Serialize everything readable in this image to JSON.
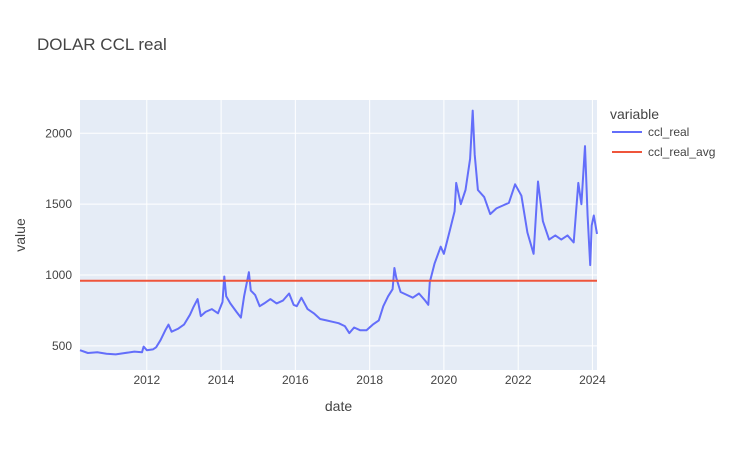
{
  "chart_data": {
    "type": "line",
    "title": "DOLAR CCL real",
    "xlabel": "date",
    "ylabel": "value",
    "legend_title": "variable",
    "legend_position": "right",
    "grid": true,
    "xlim": [
      "2010-03-15",
      "2024-02-15"
    ],
    "ylim": [
      330,
      2235
    ],
    "xticks": [
      2012,
      2014,
      2016,
      2018,
      2020,
      2022,
      2024
    ],
    "yticks": [
      500,
      1000,
      1500,
      2000
    ],
    "colors": {
      "ccl_real": "#636efa",
      "ccl_real_avg": "#ef553b",
      "plot_bg": "#e5ecf6"
    },
    "series": [
      {
        "name": "ccl_real",
        "points": [
          [
            "2010-03-15",
            470
          ],
          [
            "2010-06-01",
            450
          ],
          [
            "2010-09-01",
            455
          ],
          [
            "2010-12-01",
            445
          ],
          [
            "2011-03-01",
            440
          ],
          [
            "2011-06-01",
            450
          ],
          [
            "2011-09-01",
            460
          ],
          [
            "2011-11-15",
            455
          ],
          [
            "2011-12-01",
            495
          ],
          [
            "2012-01-01",
            470
          ],
          [
            "2012-03-01",
            475
          ],
          [
            "2012-04-01",
            490
          ],
          [
            "2012-05-15",
            540
          ],
          [
            "2012-07-01",
            610
          ],
          [
            "2012-08-01",
            650
          ],
          [
            "2012-09-01",
            600
          ],
          [
            "2012-11-01",
            620
          ],
          [
            "2013-01-01",
            650
          ],
          [
            "2013-03-01",
            720
          ],
          [
            "2013-04-01",
            770
          ],
          [
            "2013-05-15",
            830
          ],
          [
            "2013-06-15",
            710
          ],
          [
            "2013-08-01",
            740
          ],
          [
            "2013-10-01",
            760
          ],
          [
            "2013-12-01",
            730
          ],
          [
            "2014-01-15",
            810
          ],
          [
            "2014-02-01",
            990
          ],
          [
            "2014-02-20",
            850
          ],
          [
            "2014-04-01",
            800
          ],
          [
            "2014-06-01",
            740
          ],
          [
            "2014-07-15",
            700
          ],
          [
            "2014-08-15",
            850
          ],
          [
            "2014-09-15",
            960
          ],
          [
            "2014-10-01",
            1020
          ],
          [
            "2014-10-20",
            890
          ],
          [
            "2014-12-01",
            860
          ],
          [
            "2015-01-15",
            780
          ],
          [
            "2015-03-01",
            800
          ],
          [
            "2015-05-01",
            830
          ],
          [
            "2015-07-01",
            800
          ],
          [
            "2015-09-01",
            820
          ],
          [
            "2015-11-01",
            870
          ],
          [
            "2015-12-15",
            790
          ],
          [
            "2016-01-15",
            780
          ],
          [
            "2016-03-01",
            840
          ],
          [
            "2016-05-01",
            760
          ],
          [
            "2016-07-01",
            730
          ],
          [
            "2016-09-01",
            690
          ],
          [
            "2016-11-01",
            680
          ],
          [
            "2017-01-01",
            670
          ],
          [
            "2017-03-01",
            660
          ],
          [
            "2017-05-01",
            640
          ],
          [
            "2017-06-15",
            590
          ],
          [
            "2017-08-01",
            630
          ],
          [
            "2017-10-01",
            610
          ],
          [
            "2017-12-01",
            610
          ],
          [
            "2018-02-01",
            650
          ],
          [
            "2018-04-01",
            680
          ],
          [
            "2018-05-15",
            780
          ],
          [
            "2018-07-01",
            850
          ],
          [
            "2018-08-15",
            900
          ],
          [
            "2018-09-01",
            1050
          ],
          [
            "2018-09-20",
            980
          ],
          [
            "2018-11-01",
            880
          ],
          [
            "2019-01-01",
            860
          ],
          [
            "2019-03-01",
            840
          ],
          [
            "2019-05-01",
            870
          ],
          [
            "2019-07-01",
            820
          ],
          [
            "2019-08-01",
            790
          ],
          [
            "2019-08-15",
            950
          ],
          [
            "2019-10-01",
            1080
          ],
          [
            "2019-12-01",
            1200
          ],
          [
            "2020-01-01",
            1150
          ],
          [
            "2020-03-01",
            1320
          ],
          [
            "2020-04-15",
            1450
          ],
          [
            "2020-05-01",
            1650
          ],
          [
            "2020-06-15",
            1500
          ],
          [
            "2020-08-01",
            1600
          ],
          [
            "2020-09-15",
            1820
          ],
          [
            "2020-10-10",
            2160
          ],
          [
            "2020-10-30",
            1850
          ],
          [
            "2020-12-01",
            1600
          ],
          [
            "2021-02-01",
            1550
          ],
          [
            "2021-04-01",
            1430
          ],
          [
            "2021-06-01",
            1470
          ],
          [
            "2021-08-01",
            1490
          ],
          [
            "2021-10-01",
            1510
          ],
          [
            "2021-12-01",
            1640
          ],
          [
            "2022-02-01",
            1560
          ],
          [
            "2022-04-01",
            1300
          ],
          [
            "2022-06-01",
            1150
          ],
          [
            "2022-07-15",
            1660
          ],
          [
            "2022-09-01",
            1380
          ],
          [
            "2022-11-01",
            1250
          ],
          [
            "2023-01-01",
            1280
          ],
          [
            "2023-03-01",
            1250
          ],
          [
            "2023-05-01",
            1280
          ],
          [
            "2023-07-01",
            1230
          ],
          [
            "2023-08-15",
            1650
          ],
          [
            "2023-09-15",
            1500
          ],
          [
            "2023-10-20",
            1910
          ],
          [
            "2023-11-15",
            1420
          ],
          [
            "2023-12-10",
            1070
          ],
          [
            "2023-12-25",
            1350
          ],
          [
            "2024-01-15",
            1420
          ],
          [
            "2024-02-15",
            1290
          ]
        ]
      },
      {
        "name": "ccl_real_avg",
        "points": [
          [
            "2010-03-15",
            960
          ],
          [
            "2024-02-15",
            960
          ]
        ]
      }
    ]
  }
}
